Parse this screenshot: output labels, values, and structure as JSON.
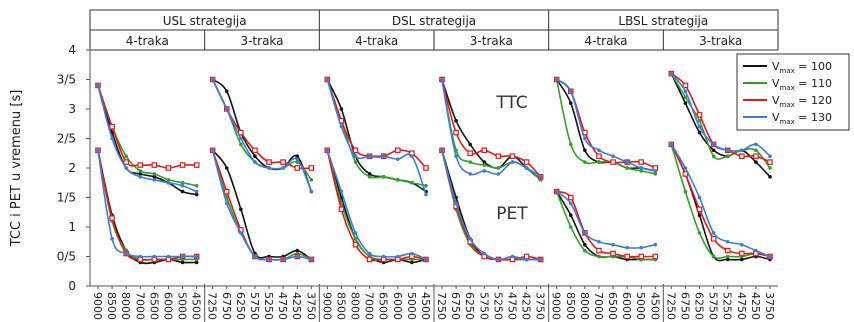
{
  "chart_data": {
    "type": "line",
    "ylabel": "TCC i PET u vremenu [s]",
    "ylim": [
      0,
      4
    ],
    "y_ticks": [
      "0",
      "0/5",
      "1",
      "1/5",
      "2",
      "2/5",
      "3",
      "3/5",
      "4"
    ],
    "grid": false,
    "legend_position": "top-right",
    "strategies": [
      "USL strategija",
      "DSL strategija",
      "LBSL strategija"
    ],
    "lanes": [
      "4-traka",
      "3-traka"
    ],
    "x_4lane": [
      "9000",
      "8500",
      "8000",
      "7000",
      "6500",
      "6000",
      "5000",
      "4500"
    ],
    "x_3lane": [
      "7250",
      "6750",
      "6250",
      "5750",
      "5250",
      "4750",
      "4250",
      "3750"
    ],
    "annotations": [
      "TTC",
      "PET"
    ],
    "series": [
      {
        "name_prefix": "V",
        "name_sub": "max",
        "name_suffix": " = 100",
        "color": "#111111",
        "marker": "dot"
      },
      {
        "name_prefix": "V",
        "name_sub": "max",
        "name_suffix": " = 110",
        "color": "#33a02c",
        "marker": "dot"
      },
      {
        "name_prefix": "V",
        "name_sub": "max",
        "name_suffix": " = 120",
        "color": "#e31a1c",
        "marker": "square"
      },
      {
        "name_prefix": "V",
        "name_sub": "max",
        "name_suffix": " = 130",
        "color": "#3b7ddd",
        "marker": "dot"
      }
    ],
    "panels": [
      {
        "strategy": "USL strategija",
        "lane": "4-traka",
        "ttc": [
          [
            3.4,
            2.6,
            2.0,
            1.9,
            1.85,
            1.75,
            1.6,
            1.55
          ],
          [
            3.4,
            2.7,
            2.2,
            1.95,
            1.9,
            1.8,
            1.75,
            1.7
          ],
          [
            3.4,
            2.7,
            2.1,
            2.05,
            2.05,
            2.0,
            2.05,
            2.05
          ],
          [
            3.4,
            2.5,
            2.0,
            1.85,
            1.8,
            1.75,
            1.7,
            1.6
          ]
        ],
        "pet": [
          [
            2.3,
            1.2,
            0.6,
            0.4,
            0.4,
            0.45,
            0.4,
            0.4
          ],
          [
            2.3,
            1.1,
            0.6,
            0.45,
            0.45,
            0.45,
            0.45,
            0.45
          ],
          [
            2.3,
            1.15,
            0.55,
            0.45,
            0.45,
            0.45,
            0.5,
            0.5
          ],
          [
            2.3,
            0.8,
            0.55,
            0.5,
            0.5,
            0.5,
            0.5,
            0.5
          ]
        ]
      },
      {
        "strategy": "USL strategija",
        "lane": "3-traka",
        "ttc": [
          [
            3.5,
            3.3,
            2.6,
            2.2,
            2.0,
            2.0,
            2.2,
            1.6
          ],
          [
            3.5,
            3.0,
            2.4,
            2.1,
            2.0,
            2.0,
            2.1,
            1.8
          ],
          [
            3.5,
            3.0,
            2.6,
            2.3,
            2.1,
            2.1,
            2.0,
            2.0
          ],
          [
            3.5,
            3.0,
            2.5,
            2.1,
            2.0,
            2.0,
            2.15,
            1.6
          ]
        ],
        "pet": [
          [
            2.3,
            2.0,
            1.3,
            0.55,
            0.5,
            0.5,
            0.6,
            0.45
          ],
          [
            2.3,
            1.5,
            0.9,
            0.5,
            0.45,
            0.45,
            0.55,
            0.45
          ],
          [
            2.3,
            1.6,
            0.95,
            0.5,
            0.45,
            0.45,
            0.5,
            0.45
          ],
          [
            2.3,
            1.4,
            0.9,
            0.5,
            0.45,
            0.45,
            0.5,
            0.45
          ]
        ]
      },
      {
        "strategy": "DSL strategija",
        "lane": "4-traka",
        "ttc": [
          [
            3.5,
            3.0,
            2.2,
            1.9,
            1.85,
            1.8,
            1.75,
            1.6
          ],
          [
            3.5,
            2.8,
            2.1,
            1.85,
            1.85,
            1.8,
            1.75,
            1.7
          ],
          [
            3.5,
            2.8,
            2.3,
            2.2,
            2.2,
            2.3,
            2.25,
            2.0
          ],
          [
            3.5,
            2.7,
            2.2,
            2.2,
            2.2,
            2.15,
            2.2,
            1.55
          ]
        ],
        "pet": [
          [
            2.3,
            1.5,
            0.8,
            0.5,
            0.4,
            0.45,
            0.4,
            0.45
          ],
          [
            2.3,
            1.4,
            0.8,
            0.5,
            0.45,
            0.45,
            0.45,
            0.45
          ],
          [
            2.3,
            1.3,
            0.7,
            0.45,
            0.45,
            0.45,
            0.5,
            0.45
          ],
          [
            2.3,
            1.6,
            0.9,
            0.55,
            0.5,
            0.5,
            0.55,
            0.45
          ]
        ]
      },
      {
        "strategy": "DSL strategija",
        "lane": "3-traka",
        "ttc": [
          [
            3.5,
            2.8,
            2.4,
            2.1,
            2.0,
            2.2,
            2.0,
            1.8
          ],
          [
            3.5,
            2.3,
            2.1,
            2.05,
            2.0,
            2.1,
            2.0,
            1.8
          ],
          [
            3.5,
            2.6,
            2.25,
            2.3,
            2.2,
            2.2,
            2.1,
            1.85
          ],
          [
            3.5,
            2.2,
            1.9,
            1.95,
            1.9,
            2.1,
            2.0,
            1.85
          ]
        ],
        "pet": [
          [
            2.3,
            1.5,
            0.8,
            0.5,
            0.45,
            0.45,
            0.45,
            0.45
          ],
          [
            2.3,
            1.3,
            0.7,
            0.5,
            0.45,
            0.45,
            0.45,
            0.45
          ],
          [
            2.3,
            1.35,
            0.75,
            0.5,
            0.45,
            0.45,
            0.5,
            0.45
          ],
          [
            2.3,
            1.4,
            0.8,
            0.55,
            0.45,
            0.5,
            0.45,
            0.45
          ]
        ]
      },
      {
        "strategy": "LBSL strategija",
        "lane": "4-traka",
        "ttc": [
          [
            3.5,
            3.1,
            2.3,
            2.1,
            2.1,
            2.0,
            2.0,
            1.95
          ],
          [
            3.5,
            2.4,
            2.1,
            2.1,
            2.1,
            2.0,
            1.95,
            1.9
          ],
          [
            3.5,
            3.3,
            2.6,
            2.2,
            2.1,
            2.1,
            2.1,
            2.0
          ],
          [
            3.5,
            3.3,
            2.5,
            2.3,
            2.2,
            2.1,
            2.0,
            1.95
          ]
        ],
        "pet": [
          [
            1.6,
            1.2,
            0.7,
            0.5,
            0.5,
            0.45,
            0.45,
            0.45
          ],
          [
            1.6,
            1.0,
            0.6,
            0.5,
            0.5,
            0.5,
            0.45,
            0.45
          ],
          [
            1.6,
            1.5,
            0.9,
            0.6,
            0.55,
            0.5,
            0.5,
            0.5
          ],
          [
            1.6,
            1.4,
            0.9,
            0.75,
            0.7,
            0.65,
            0.65,
            0.7
          ]
        ]
      },
      {
        "strategy": "LBSL strategija",
        "lane": "3-traka",
        "ttc": [
          [
            3.6,
            3.1,
            2.6,
            2.3,
            2.2,
            2.3,
            2.1,
            1.85
          ],
          [
            3.6,
            3.2,
            2.8,
            2.2,
            2.2,
            2.3,
            2.3,
            2.0
          ],
          [
            3.6,
            3.4,
            2.9,
            2.4,
            2.3,
            2.2,
            2.2,
            2.1
          ],
          [
            3.6,
            3.3,
            2.7,
            2.4,
            2.3,
            2.3,
            2.4,
            2.2
          ]
        ],
        "pet": [
          [
            2.4,
            1.9,
            1.2,
            0.5,
            0.45,
            0.45,
            0.5,
            0.45
          ],
          [
            2.4,
            1.6,
            0.9,
            0.5,
            0.5,
            0.5,
            0.55,
            0.5
          ],
          [
            2.4,
            1.9,
            1.3,
            0.8,
            0.6,
            0.55,
            0.55,
            0.5
          ],
          [
            2.4,
            2.0,
            1.5,
            0.9,
            0.75,
            0.7,
            0.6,
            0.5
          ]
        ]
      }
    ]
  }
}
